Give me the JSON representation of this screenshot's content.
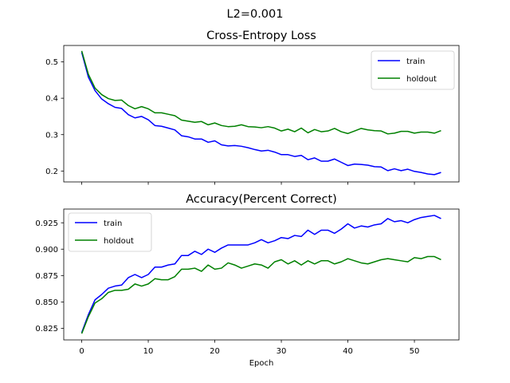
{
  "figure": {
    "suptitle": "L2=0.001"
  },
  "chart_data": [
    {
      "type": "line",
      "title": "Cross-Entropy Loss",
      "xlabel": "",
      "ylabel": "",
      "xlim": [
        -2.7,
        56.7
      ],
      "ylim": [
        0.17,
        0.545
      ],
      "xticks": [
        0,
        10,
        20,
        30,
        40,
        50
      ],
      "show_xtick_labels": false,
      "yticks": [
        0.2,
        0.3,
        0.4,
        0.5
      ],
      "ytick_labels": [
        "0.2",
        "0.3",
        "0.4",
        "0.5"
      ],
      "grid": false,
      "legend": "upper-right",
      "x": [
        0,
        1,
        2,
        3,
        4,
        5,
        6,
        7,
        8,
        9,
        10,
        11,
        12,
        13,
        14,
        15,
        16,
        17,
        18,
        19,
        20,
        21,
        22,
        23,
        24,
        25,
        26,
        27,
        28,
        29,
        30,
        31,
        32,
        33,
        34,
        35,
        36,
        37,
        38,
        39,
        40,
        41,
        42,
        43,
        44,
        45,
        46,
        47,
        48,
        49,
        50,
        51,
        52,
        53,
        54
      ],
      "series": [
        {
          "name": "train",
          "color": "#0000ff",
          "values": [
            0.526,
            0.458,
            0.421,
            0.398,
            0.385,
            0.375,
            0.372,
            0.355,
            0.346,
            0.35,
            0.341,
            0.325,
            0.323,
            0.318,
            0.313,
            0.297,
            0.294,
            0.288,
            0.288,
            0.279,
            0.283,
            0.272,
            0.269,
            0.27,
            0.268,
            0.264,
            0.259,
            0.255,
            0.257,
            0.252,
            0.245,
            0.245,
            0.24,
            0.243,
            0.231,
            0.236,
            0.227,
            0.227,
            0.233,
            0.224,
            0.215,
            0.219,
            0.218,
            0.216,
            0.212,
            0.211,
            0.201,
            0.206,
            0.201,
            0.205,
            0.199,
            0.196,
            0.192,
            0.19,
            0.196
          ]
        },
        {
          "name": "holdout",
          "color": "#008000",
          "values": [
            0.53,
            0.466,
            0.428,
            0.41,
            0.399,
            0.394,
            0.395,
            0.38,
            0.371,
            0.377,
            0.371,
            0.36,
            0.36,
            0.356,
            0.352,
            0.34,
            0.337,
            0.334,
            0.336,
            0.327,
            0.332,
            0.325,
            0.322,
            0.323,
            0.327,
            0.322,
            0.321,
            0.319,
            0.322,
            0.318,
            0.31,
            0.315,
            0.308,
            0.318,
            0.305,
            0.314,
            0.308,
            0.31,
            0.317,
            0.308,
            0.303,
            0.31,
            0.317,
            0.313,
            0.311,
            0.31,
            0.302,
            0.304,
            0.309,
            0.309,
            0.304,
            0.307,
            0.307,
            0.304,
            0.311
          ]
        }
      ]
    },
    {
      "type": "line",
      "title": "Accuracy(Percent Correct)",
      "xlabel": "Epoch",
      "ylabel": "",
      "xlim": [
        -2.7,
        56.7
      ],
      "ylim": [
        0.814,
        0.938
      ],
      "xticks": [
        0,
        10,
        20,
        30,
        40,
        50
      ],
      "xtick_labels": [
        "0",
        "10",
        "20",
        "30",
        "40",
        "50"
      ],
      "yticks": [
        0.825,
        0.85,
        0.875,
        0.9,
        0.925
      ],
      "ytick_labels": [
        "0.825",
        "0.850",
        "0.875",
        "0.900",
        "0.925"
      ],
      "grid": false,
      "legend": "upper-left",
      "x": [
        0,
        1,
        2,
        3,
        4,
        5,
        6,
        7,
        8,
        9,
        10,
        11,
        12,
        13,
        14,
        15,
        16,
        17,
        18,
        19,
        20,
        21,
        22,
        23,
        24,
        25,
        26,
        27,
        28,
        29,
        30,
        31,
        32,
        33,
        34,
        35,
        36,
        37,
        38,
        39,
        40,
        41,
        42,
        43,
        44,
        45,
        46,
        47,
        48,
        49,
        50,
        51,
        52,
        53,
        54
      ],
      "series": [
        {
          "name": "train",
          "color": "#0000ff",
          "values": [
            0.821,
            0.838,
            0.852,
            0.857,
            0.863,
            0.865,
            0.866,
            0.873,
            0.876,
            0.873,
            0.876,
            0.883,
            0.883,
            0.885,
            0.886,
            0.894,
            0.894,
            0.898,
            0.895,
            0.9,
            0.897,
            0.901,
            0.904,
            0.904,
            0.904,
            0.904,
            0.906,
            0.909,
            0.906,
            0.908,
            0.911,
            0.91,
            0.913,
            0.912,
            0.918,
            0.914,
            0.918,
            0.918,
            0.915,
            0.919,
            0.924,
            0.92,
            0.922,
            0.921,
            0.923,
            0.924,
            0.929,
            0.926,
            0.927,
            0.925,
            0.928,
            0.93,
            0.931,
            0.932,
            0.929
          ]
        },
        {
          "name": "holdout",
          "color": "#008000",
          "values": [
            0.82,
            0.836,
            0.849,
            0.853,
            0.859,
            0.861,
            0.861,
            0.862,
            0.867,
            0.865,
            0.867,
            0.872,
            0.871,
            0.871,
            0.874,
            0.881,
            0.881,
            0.882,
            0.879,
            0.885,
            0.881,
            0.882,
            0.887,
            0.885,
            0.882,
            0.884,
            0.886,
            0.885,
            0.882,
            0.888,
            0.89,
            0.886,
            0.889,
            0.885,
            0.889,
            0.886,
            0.889,
            0.889,
            0.886,
            0.888,
            0.891,
            0.889,
            0.887,
            0.886,
            0.888,
            0.89,
            0.891,
            0.89,
            0.889,
            0.888,
            0.892,
            0.891,
            0.893,
            0.893,
            0.89
          ]
        }
      ]
    }
  ]
}
